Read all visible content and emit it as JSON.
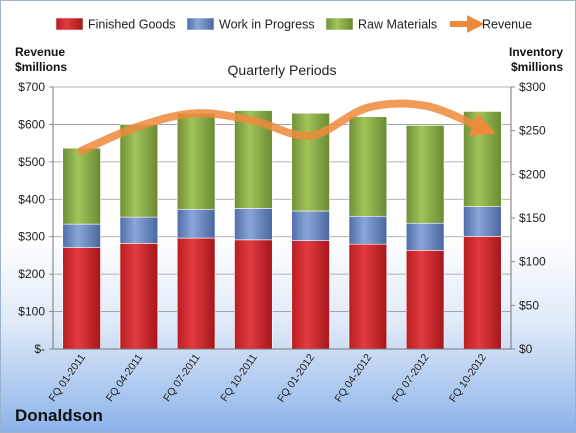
{
  "chart_data": {
    "type": "bar",
    "stacked": true,
    "title": "Quarterly Periods",
    "brand": "Donaldson",
    "left_axis_label": [
      "Revenue",
      "$millions"
    ],
    "right_axis_label": [
      "Inventory",
      "$millions"
    ],
    "categories": [
      "FQ 01-2011",
      "FQ 04-2011",
      "FQ 07-2011",
      "FQ 10-2011",
      "FQ 01-2012",
      "FQ 04-2012",
      "FQ 07-2012",
      "FQ 10-2012"
    ],
    "left_ticks": [
      "$-",
      "$100",
      "$200",
      "$300",
      "$400",
      "$500",
      "$600",
      "$700"
    ],
    "right_ticks": [
      "$0",
      "$50",
      "$100",
      "$150",
      "$200",
      "$250",
      "$300"
    ],
    "y_left_lim": [
      0,
      700
    ],
    "y_right_lim": [
      0,
      300
    ],
    "series": [
      {
        "name": "Finished Goods",
        "color": "#d62f33",
        "axis": "right",
        "values": [
          116,
          121,
          127,
          125,
          124,
          120,
          113,
          129
        ]
      },
      {
        "name": "Work in Progress",
        "color": "#6f8fc9",
        "axis": "right",
        "values": [
          27,
          30,
          33,
          36,
          34,
          32,
          31,
          34
        ]
      },
      {
        "name": "Raw Materials",
        "color": "#8db04a",
        "axis": "right",
        "values": [
          87,
          106,
          110,
          112,
          112,
          114,
          112,
          109
        ]
      },
      {
        "name": "Revenue",
        "color": "#ee8a3c",
        "type": "line",
        "axis": "left",
        "values": [
          530,
          595,
          630,
          610,
          570,
          645,
          650,
          590
        ]
      }
    ],
    "legend_position": "top",
    "grid": true
  }
}
